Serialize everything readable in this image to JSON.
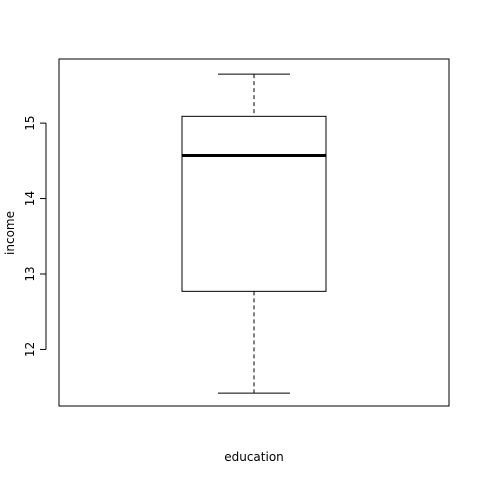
{
  "chart_data": {
    "type": "boxplot",
    "title": "",
    "xlabel": "education",
    "ylabel": "income",
    "ylim": [
      11.25,
      15.85
    ],
    "yticks": [
      12,
      13,
      14,
      15
    ],
    "grid": false,
    "box": {
      "whisker_low": 11.42,
      "q1": 12.77,
      "median": 14.57,
      "q3": 15.09,
      "whisker_high": 15.65
    }
  }
}
